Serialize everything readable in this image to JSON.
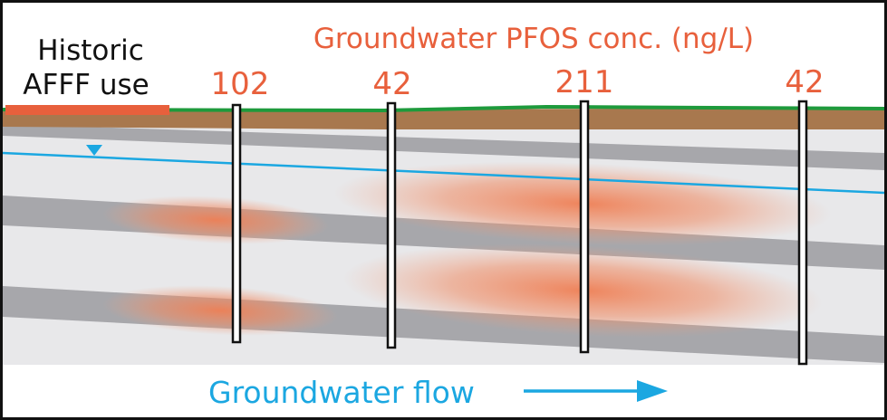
{
  "source": {
    "line1": "Historic",
    "line2": "AFFF use"
  },
  "title": "Groundwater PFOS conc. (ng/L)",
  "wells": [
    {
      "label": "102"
    },
    {
      "label": "42"
    },
    {
      "label": "211"
    },
    {
      "label": "42"
    }
  ],
  "flow_label": "Groundwater flow",
  "colors": {
    "concentration": "#e8603c",
    "water": "#1ba7e1",
    "ground_surface": "#1e9a3c",
    "soil": "#a8784e",
    "aquitard": "#a7a7ab",
    "aquifer": "#e8e8ea",
    "source_bar": "#e8603c"
  }
}
